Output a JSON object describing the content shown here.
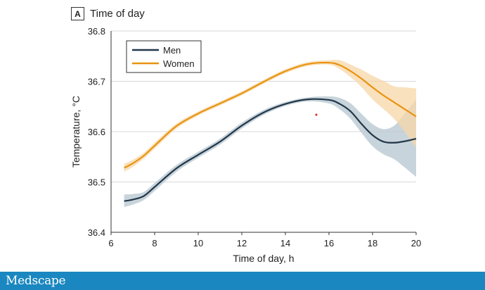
{
  "panel": {
    "letter": "A",
    "title": "Time of day"
  },
  "footer": {
    "logo_text": "Medscape"
  },
  "colors": {
    "men": "#23374a",
    "women": "#e8940f",
    "men_band": "#b5c5cf",
    "women_band": "#f7d7a8",
    "grid": "#d9d9d9",
    "footer": "#1a87c0"
  },
  "chart_data": {
    "type": "line",
    "title": "Time of day",
    "xlabel": "Time of day, h",
    "ylabel": "Temperature, °C",
    "xlim": [
      6,
      20
    ],
    "ylim": [
      36.4,
      36.8
    ],
    "x_ticks": [
      "6",
      "8",
      "10",
      "12",
      "14",
      "16",
      "18",
      "20"
    ],
    "y_ticks": [
      "36.4",
      "36.5",
      "36.6",
      "36.7",
      "36.8"
    ],
    "grid": "horizontal",
    "legend_position": "top-left",
    "series": [
      {
        "name": "Men",
        "x": [
          6.6,
          7.0,
          7.5,
          8.0,
          9.0,
          10.0,
          11.0,
          12.0,
          13.0,
          14.0,
          15.0,
          16.0,
          16.5,
          17.0,
          17.5,
          18.0,
          18.5,
          19.0,
          19.5,
          20.0
        ],
        "values": [
          36.462,
          36.465,
          36.472,
          36.49,
          36.527,
          36.554,
          36.58,
          36.612,
          36.638,
          36.655,
          36.664,
          36.663,
          36.655,
          36.64,
          36.615,
          36.593,
          36.58,
          36.578,
          36.581,
          36.586
        ],
        "ci_low": [
          36.45,
          36.455,
          36.464,
          36.482,
          36.52,
          36.548,
          36.574,
          36.606,
          36.633,
          36.651,
          36.66,
          36.656,
          36.644,
          36.625,
          36.597,
          36.571,
          36.555,
          36.545,
          36.528,
          36.51
        ],
        "ci_high": [
          36.475,
          36.476,
          36.48,
          36.498,
          36.534,
          36.56,
          36.586,
          36.618,
          36.643,
          36.659,
          36.668,
          36.67,
          36.667,
          36.656,
          36.635,
          36.615,
          36.605,
          36.612,
          36.637,
          36.664
        ]
      },
      {
        "name": "Women",
        "x": [
          6.6,
          7.0,
          7.5,
          8.0,
          9.0,
          10.0,
          11.0,
          12.0,
          13.0,
          14.0,
          15.0,
          16.0,
          16.5,
          17.0,
          17.5,
          18.0,
          18.5,
          19.0,
          19.5,
          20.0
        ],
        "values": [
          36.528,
          36.537,
          36.552,
          36.572,
          36.611,
          36.636,
          36.656,
          36.676,
          36.699,
          36.72,
          36.734,
          36.737,
          36.732,
          36.72,
          36.705,
          36.688,
          36.672,
          36.658,
          36.644,
          36.63
        ],
        "ci_low": [
          36.52,
          36.53,
          36.546,
          36.566,
          36.606,
          36.632,
          36.652,
          36.672,
          36.695,
          36.716,
          36.73,
          36.733,
          36.724,
          36.708,
          36.688,
          36.664,
          36.645,
          36.625,
          36.598,
          36.568
        ],
        "ci_high": [
          36.536,
          36.544,
          36.558,
          36.578,
          36.616,
          36.64,
          36.66,
          36.68,
          36.703,
          36.724,
          36.738,
          36.742,
          36.742,
          36.733,
          36.723,
          36.711,
          36.701,
          36.69,
          36.688,
          36.686
        ]
      }
    ],
    "annotations": []
  }
}
